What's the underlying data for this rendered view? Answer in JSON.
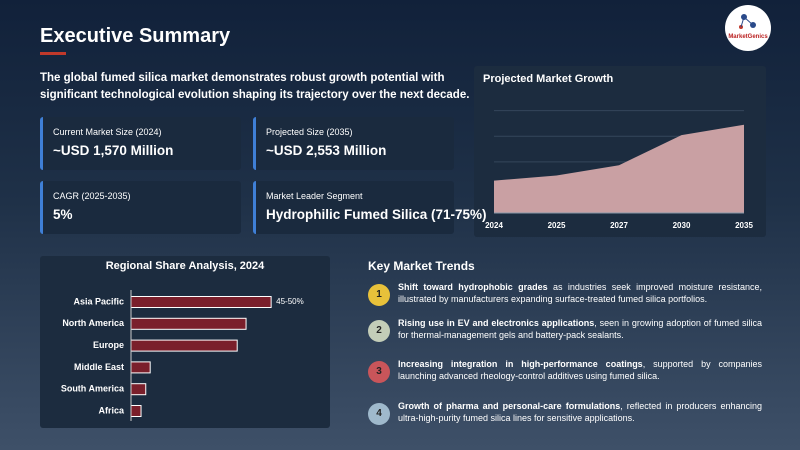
{
  "header": {
    "title": "Executive Summary",
    "logo": "MarketGenics"
  },
  "intro": "The global fumed silica market demonstrates robust growth potential with significant technological evolution shaping its trajectory over the next decade.",
  "metrics": [
    {
      "label": "Current Market Size (2024)",
      "value": "~USD 1,570 Million"
    },
    {
      "label": "Projected Size (2035)",
      "value": "~USD 2,553 Million"
    },
    {
      "label": "CAGR (2025-2035)",
      "value": "5%"
    },
    {
      "label": "Market Leader Segment",
      "value": "Hydrophilic Fumed Silica (71-75%)"
    }
  ],
  "chart_data": [
    {
      "type": "area",
      "title": "Projected Market Growth",
      "categories": [
        "2024",
        "2025",
        "2027",
        "2030",
        "2035"
      ],
      "values": [
        1570,
        1660,
        1840,
        2370,
        2553
      ],
      "color": "#c9a0a3",
      "ylim": [
        1000,
        2900
      ],
      "yticks": [
        1000,
        1450,
        1900,
        2350,
        2800
      ],
      "grid": true
    },
    {
      "type": "hbar",
      "title": "Regional Share Analysis, 2024",
      "categories": [
        "Asia Pacific",
        "North America",
        "Europe",
        "Middle East",
        "South America",
        "Africa"
      ],
      "values": [
        47.5,
        39,
        36,
        6.5,
        5,
        3.4
      ],
      "value_labels": [
        "45-50%",
        null,
        null,
        null,
        null,
        null
      ],
      "color": "#7a1f2b",
      "xlim": [
        0,
        60
      ]
    }
  ],
  "trends": {
    "title": "Key Market Trends",
    "items": [
      {
        "number": "1",
        "color": "#e8c13a",
        "bold": "Shift toward hydrophobic grades",
        "text": " as industries seek improved moisture resistance, illustrated by manufacturers expanding surface-treated fumed silica portfolios."
      },
      {
        "number": "2",
        "color": "#c3cdb8",
        "bold": "Rising use in EV and electronics applications",
        "text": ", seen in growing adoption of fumed silica for thermal-management gels and battery-pack sealants."
      },
      {
        "number": "3",
        "color": "#c9555a",
        "bold": "Increasing integration in high-performance coatings",
        "text": ", supported by companies launching advanced rheology-control additives using fumed silica."
      },
      {
        "number": "4",
        "color": "#9fb9cc",
        "bold": "Growth of pharma and personal-care formulations",
        "text": ", reflected in producers enhancing ultra-high-purity fumed silica lines for sensitive applications."
      }
    ]
  }
}
